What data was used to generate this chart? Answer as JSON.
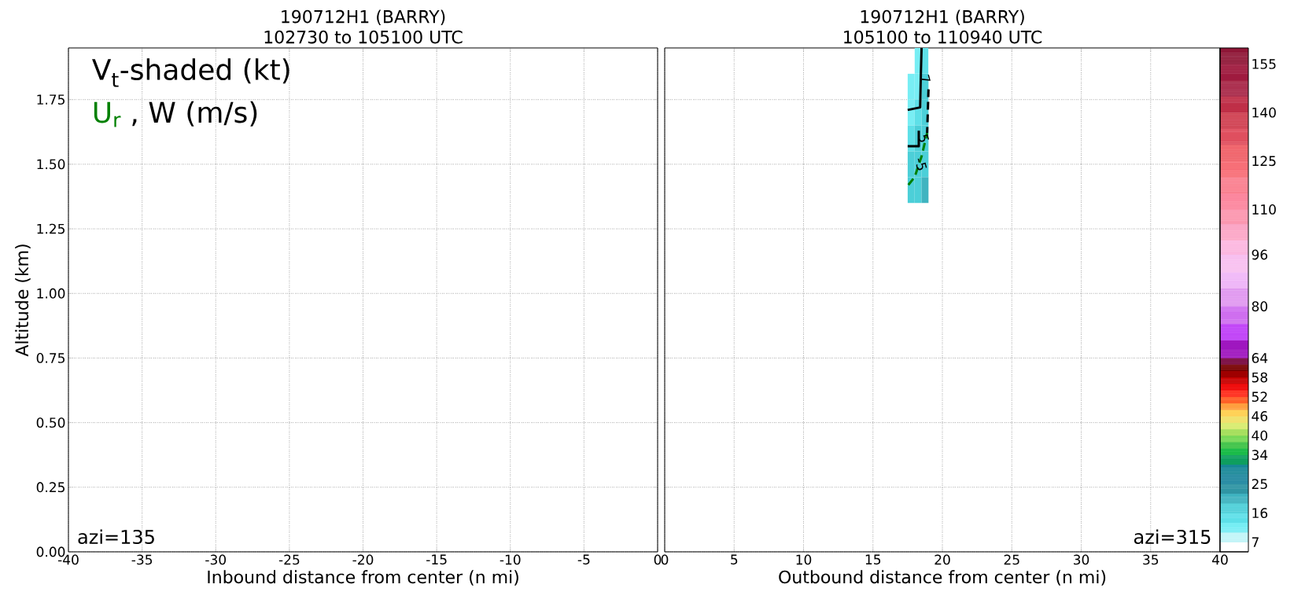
{
  "chart_data": [
    {
      "type": "heatmap",
      "title": "190712H1 (BARRY)",
      "subtitle": "102730 to 105100 UTC",
      "xlabel": "Inbound distance from center (n mi)",
      "ylabel": "Altitude (km)",
      "xlim": [
        -40,
        0
      ],
      "xticks": [
        -40,
        -35,
        -30,
        -25,
        -20,
        -15,
        -10,
        -5,
        0
      ],
      "ylim": [
        0,
        1.95
      ],
      "yticks": [
        {
          "value": 0,
          "label": "0.00"
        },
        0.25,
        {
          "value": 0.5,
          "label": "0.50"
        },
        0.75,
        {
          "value": 1.0,
          "label": "1.00"
        },
        1.25,
        {
          "value": 1.5,
          "label": "1.50"
        },
        1.75
      ],
      "grid": true,
      "annotations": [
        "V$_{t}$-shaded (kt)",
        "U$_{r}$",
        ", W (m/s)",
        "azi=135"
      ]
    },
    {
      "type": "heatmap",
      "title": "190712H1 (BARRY)",
      "subtitle": "105100 to 110940 UTC",
      "xlabel": "Outbound distance from center (n mi)",
      "xlim": [
        0,
        40
      ],
      "xticks": [
        0,
        5,
        10,
        15,
        20,
        25,
        30,
        35,
        40
      ],
      "ylim": [
        0,
        1.95
      ],
      "yticks": [
        0,
        0.25,
        0.5,
        0.75,
        1.0,
        1.25,
        1.5,
        1.75
      ],
      "grid": true,
      "tick_labels": "x",
      "x": [
        17.75,
        18.25,
        18.75
      ],
      "y": [
        1.9,
        1.8,
        1.7,
        1.6,
        1.5,
        1.4
      ],
      "cells": [
        [
          null,
          11,
          14
        ],
        [
          11,
          11,
          17
        ],
        [
          11,
          14,
          17
        ],
        [
          14,
          17,
          17
        ],
        [
          17,
          17,
          17
        ],
        [
          17,
          17,
          20
        ]
      ],
      "cticks": [
        7,
        16,
        25,
        34,
        40,
        46,
        52,
        58,
        64,
        80,
        96,
        110,
        125,
        140,
        155
      ],
      "series": [
        {
          "type": "line",
          "color": "#000000",
          "line_style": "solid",
          "x": [
            18.5,
            18.45,
            18.4,
            17.5
          ],
          "values": [
            1.95,
            1.85,
            1.72,
            1.71
          ]
        },
        {
          "type": "line",
          "color": "#000000",
          "line_style": "solid",
          "x": [
            18.3,
            18.3,
            17.5
          ],
          "values": [
            1.63,
            1.57,
            1.57
          ]
        },
        {
          "type": "line",
          "color": "#000000",
          "line_style": "dashed",
          "x": [
            19.0,
            18.95,
            18.9
          ],
          "values": [
            1.79,
            1.7,
            1.62
          ]
        },
        {
          "type": "line",
          "color": "#008000",
          "line_style": "dashed",
          "x": [
            17.55,
            18.0,
            18.5,
            18.9
          ],
          "values": [
            1.42,
            1.45,
            1.53,
            1.62
          ]
        }
      ],
      "annotations": [
        {
          "text": "7",
          "x": 18.75,
          "y": 1.83
        },
        {
          "text": "5",
          "x": 18.65,
          "y": 1.6
        },
        {
          "text": "-5",
          "x": 18.45,
          "y": 1.5
        },
        "azi=315"
      ]
    }
  ]
}
